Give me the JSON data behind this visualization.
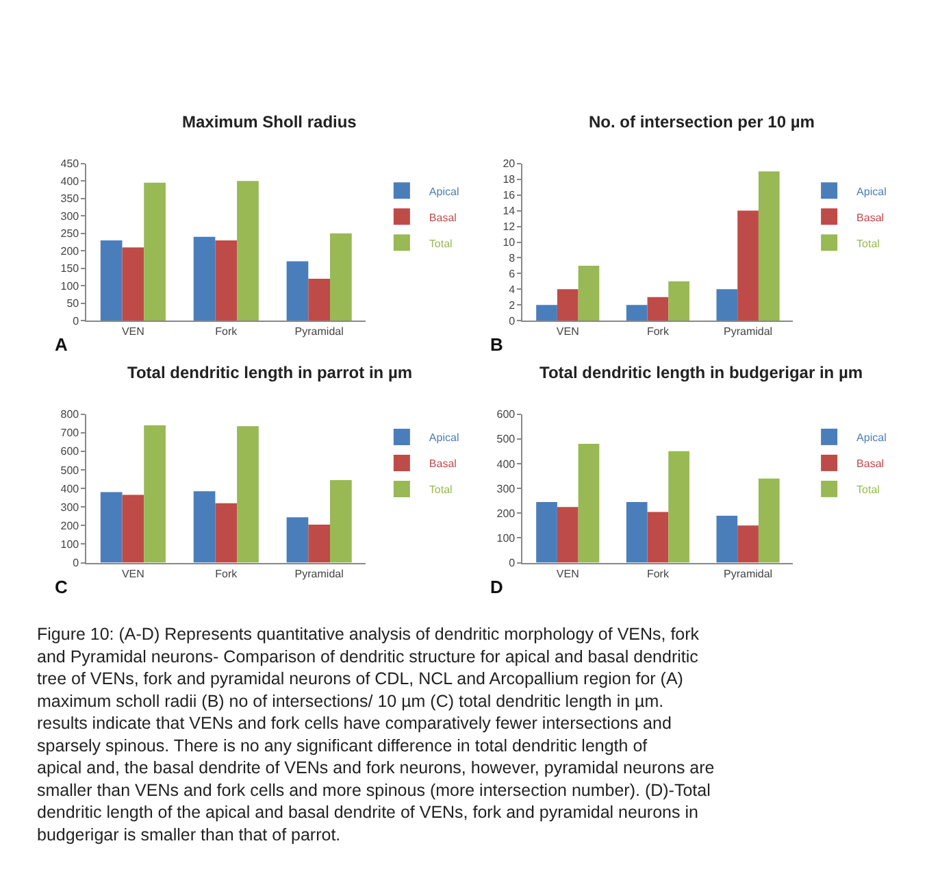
{
  "chart_data": [
    {
      "type": "bar",
      "title": "Maximum Sholl radius",
      "categories": [
        "VEN",
        "Fork",
        "Pyramidal"
      ],
      "ylim": [
        0,
        450
      ],
      "yticks": [
        0,
        50,
        100,
        150,
        200,
        250,
        300,
        350,
        400,
        450
      ],
      "legend": "right",
      "annotations": [
        "A"
      ],
      "series": [
        {
          "name": "Apical",
          "color": "#4a7ebb",
          "values": [
            230,
            240,
            170
          ]
        },
        {
          "name": "Basal",
          "color": "#be4b48",
          "values": [
            210,
            230,
            120
          ]
        },
        {
          "name": "Total",
          "color": "#98b954",
          "values": [
            395,
            400,
            250
          ]
        }
      ]
    },
    {
      "type": "bar",
      "title": "No. of intersection per 10 µm",
      "categories": [
        "VEN",
        "Fork",
        "Pyramidal"
      ],
      "ylim": [
        0,
        20
      ],
      "yticks": [
        0,
        2,
        4,
        6,
        8,
        10,
        12,
        14,
        16,
        18,
        20
      ],
      "legend": "right",
      "annotations": [
        "B"
      ],
      "series": [
        {
          "name": "Apical",
          "color": "#4a7ebb",
          "values": [
            2,
            2,
            4
          ]
        },
        {
          "name": "Basal",
          "color": "#be4b48",
          "values": [
            4,
            3,
            14
          ]
        },
        {
          "name": "Total",
          "color": "#98b954",
          "values": [
            7,
            5,
            19
          ]
        }
      ]
    },
    {
      "type": "bar",
      "title": "Total dendritic length in parrot in µm",
      "categories": [
        "VEN",
        "Fork",
        "Pyramidal"
      ],
      "ylim": [
        0,
        800
      ],
      "yticks": [
        0,
        100,
        200,
        300,
        400,
        500,
        600,
        700,
        800
      ],
      "legend": "right",
      "annotations": [
        "C"
      ],
      "series": [
        {
          "name": "Apical",
          "color": "#4a7ebb",
          "values": [
            380,
            385,
            245
          ]
        },
        {
          "name": "Basal",
          "color": "#be4b48",
          "values": [
            365,
            320,
            205
          ]
        },
        {
          "name": "Total",
          "color": "#98b954",
          "values": [
            740,
            735,
            445
          ]
        }
      ]
    },
    {
      "type": "bar",
      "title": "Total dendritic length in budgerigar in µm",
      "categories": [
        "VEN",
        "Fork",
        "Pyramidal"
      ],
      "ylim": [
        0,
        600
      ],
      "yticks": [
        0,
        100,
        200,
        300,
        400,
        500,
        600
      ],
      "legend": "right",
      "annotations": [
        "D",
        "Figure 10: (A-D) Represents quantitative analysis of dendritic morphology of VENs, fork and Pyramidal neurons- Comparison of dendritic structure for apical and basal dendritic tree of VENs, fork and pyramidal neurons of CDL, NCL and Arcopallium region for (A) maximum scholl radii (B) no of intersections/ 10 µm (C) total dendritic length in µm. results indicate that VENs and fork cells have comparatively fewer intersections and sparsely spinous. There is no any significant difference in total dendritic length of apical and, the basal dendrite of VENs and fork neurons, however, pyramidal neurons are smaller than VENs and fork cells and more spinous (more intersection number). (D)-Total dendritic length of the apical and basal dendrite of VENs, fork and pyramidal neurons in budgerigar is smaller than that of parrot."
      ],
      "series": [
        {
          "name": "Apical",
          "color": "#4a7ebb",
          "values": [
            245,
            245,
            190
          ]
        },
        {
          "name": "Basal",
          "color": "#be4b48",
          "values": [
            225,
            205,
            150
          ]
        },
        {
          "name": "Total",
          "color": "#98b954",
          "values": [
            480,
            450,
            340
          ]
        }
      ]
    }
  ]
}
